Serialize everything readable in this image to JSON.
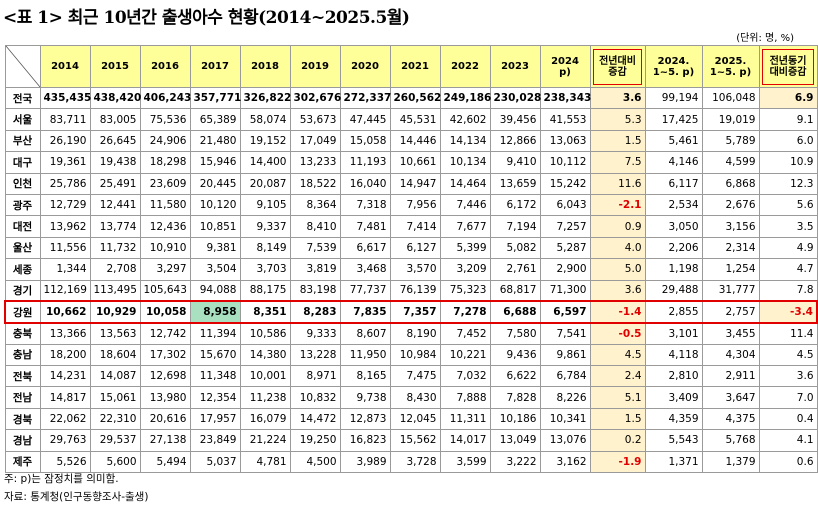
{
  "title": "<표 1> 최근 10년간 출생아수 현황(2014~2025.5월)",
  "unit": "(단위: 명, %)",
  "headers": [
    "2014",
    "2015",
    "2016",
    "2017",
    "2018",
    "2019",
    "2020",
    "2021",
    "2022",
    "2023"
  ],
  "header_2024": [
    "2024",
    "p)"
  ],
  "header_diff": [
    "전년대비",
    "증감"
  ],
  "header_ytd2024": [
    "2024.",
    "1~5. p)"
  ],
  "header_ytd2025": [
    "2025.",
    "1~5. p)"
  ],
  "header_ytd_diff": [
    "전년동기",
    "대비증감"
  ],
  "rows": [
    {
      "region": "전국",
      "vals": [
        "435,435",
        "438,420",
        "406,243",
        "357,771",
        "326,822",
        "302,676",
        "272,337",
        "260,562",
        "249,186",
        "230,028",
        "238,343"
      ],
      "diff": "3.6",
      "ytd24": "99,194",
      "ytd25": "106,048",
      "ytddiff": "6.9"
    },
    {
      "region": "서울",
      "vals": [
        "83,711",
        "83,005",
        "75,536",
        "65,389",
        "58,074",
        "53,673",
        "47,445",
        "45,531",
        "42,602",
        "39,456",
        "41,553"
      ],
      "diff": "5.3",
      "ytd24": "17,425",
      "ytd25": "19,019",
      "ytddiff": "9.1"
    },
    {
      "region": "부산",
      "vals": [
        "26,190",
        "26,645",
        "24,906",
        "21,480",
        "19,152",
        "17,049",
        "15,058",
        "14,446",
        "14,134",
        "12,866",
        "13,063"
      ],
      "diff": "1.5",
      "ytd24": "5,461",
      "ytd25": "5,789",
      "ytddiff": "6.0"
    },
    {
      "region": "대구",
      "vals": [
        "19,361",
        "19,438",
        "18,298",
        "15,946",
        "14,400",
        "13,233",
        "11,193",
        "10,661",
        "10,134",
        "9,410",
        "10,112"
      ],
      "diff": "7.5",
      "ytd24": "4,146",
      "ytd25": "4,599",
      "ytddiff": "10.9"
    },
    {
      "region": "인천",
      "vals": [
        "25,786",
        "25,491",
        "23,609",
        "20,445",
        "20,087",
        "18,522",
        "16,040",
        "14,947",
        "14,464",
        "13,659",
        "15,242"
      ],
      "diff": "11.6",
      "ytd24": "6,117",
      "ytd25": "6,868",
      "ytddiff": "12.3"
    },
    {
      "region": "광주",
      "vals": [
        "12,729",
        "12,441",
        "11,580",
        "10,120",
        "9,105",
        "8,364",
        "7,318",
        "7,956",
        "7,446",
        "6,172",
        "6,043"
      ],
      "diff": "-2.1",
      "ytd24": "2,534",
      "ytd25": "2,676",
      "ytddiff": "5.6"
    },
    {
      "region": "대전",
      "vals": [
        "13,962",
        "13,774",
        "12,436",
        "10,851",
        "9,337",
        "8,410",
        "7,481",
        "7,414",
        "7,677",
        "7,194",
        "7,257"
      ],
      "diff": "0.9",
      "ytd24": "3,050",
      "ytd25": "3,156",
      "ytddiff": "3.5"
    },
    {
      "region": "울산",
      "vals": [
        "11,556",
        "11,732",
        "10,910",
        "9,381",
        "8,149",
        "7,539",
        "6,617",
        "6,127",
        "5,399",
        "5,082",
        "5,287"
      ],
      "diff": "4.0",
      "ytd24": "2,206",
      "ytd25": "2,314",
      "ytddiff": "4.9"
    },
    {
      "region": "세종",
      "vals": [
        "1,344",
        "2,708",
        "3,297",
        "3,504",
        "3,703",
        "3,819",
        "3,468",
        "3,570",
        "3,209",
        "2,761",
        "2,900"
      ],
      "diff": "5.0",
      "ytd24": "1,198",
      "ytd25": "1,254",
      "ytddiff": "4.7"
    },
    {
      "region": "경기",
      "vals": [
        "112,169",
        "113,495",
        "105,643",
        "94,088",
        "88,175",
        "83,198",
        "77,737",
        "76,139",
        "75,323",
        "68,817",
        "71,300"
      ],
      "diff": "3.6",
      "ytd24": "29,488",
      "ytd25": "31,777",
      "ytddiff": "7.8"
    },
    {
      "region": "강원",
      "vals": [
        "10,662",
        "10,929",
        "10,058",
        "8,958",
        "8,351",
        "8,283",
        "7,835",
        "7,357",
        "7,278",
        "6,688",
        "6,597"
      ],
      "diff": "-1.4",
      "ytd24": "2,855",
      "ytd25": "2,757",
      "ytddiff": "-3.4"
    },
    {
      "region": "충북",
      "vals": [
        "13,366",
        "13,563",
        "12,742",
        "11,394",
        "10,586",
        "9,333",
        "8,607",
        "8,190",
        "7,452",
        "7,580",
        "7,541"
      ],
      "diff": "-0.5",
      "ytd24": "3,101",
      "ytd25": "3,455",
      "ytddiff": "11.4"
    },
    {
      "region": "충남",
      "vals": [
        "18,200",
        "18,604",
        "17,302",
        "15,670",
        "14,380",
        "13,228",
        "11,950",
        "10,984",
        "10,221",
        "9,436",
        "9,861"
      ],
      "diff": "4.5",
      "ytd24": "4,118",
      "ytd25": "4,304",
      "ytddiff": "4.5"
    },
    {
      "region": "전북",
      "vals": [
        "14,231",
        "14,087",
        "12,698",
        "11,348",
        "10,001",
        "8,971",
        "8,165",
        "7,475",
        "7,032",
        "6,622",
        "6,784"
      ],
      "diff": "2.4",
      "ytd24": "2,810",
      "ytd25": "2,911",
      "ytddiff": "3.6"
    },
    {
      "region": "전남",
      "vals": [
        "14,817",
        "15,061",
        "13,980",
        "12,354",
        "11,238",
        "10,832",
        "9,738",
        "8,430",
        "7,888",
        "7,828",
        "8,226"
      ],
      "diff": "5.1",
      "ytd24": "3,409",
      "ytd25": "3,647",
      "ytddiff": "7.0"
    },
    {
      "region": "경북",
      "vals": [
        "22,062",
        "22,310",
        "20,616",
        "17,957",
        "16,079",
        "14,472",
        "12,873",
        "12,045",
        "11,311",
        "10,186",
        "10,341"
      ],
      "diff": "1.5",
      "ytd24": "4,359",
      "ytd25": "4,375",
      "ytddiff": "0.4"
    },
    {
      "region": "경남",
      "vals": [
        "29,763",
        "29,537",
        "27,138",
        "23,849",
        "21,224",
        "19,250",
        "16,823",
        "15,562",
        "14,017",
        "13,049",
        "13,076"
      ],
      "diff": "0.2",
      "ytd24": "5,543",
      "ytd25": "5,768",
      "ytddiff": "4.1"
    },
    {
      "region": "제주",
      "vals": [
        "5,526",
        "5,600",
        "5,494",
        "5,037",
        "4,781",
        "4,500",
        "3,989",
        "3,728",
        "3,599",
        "3,222",
        "3,162"
      ],
      "diff": "-1.9",
      "ytd24": "1,371",
      "ytd25": "1,379",
      "ytddiff": "0.6"
    }
  ],
  "highlight_region": "강원",
  "highlight_green_cell": {
    "region": "강원",
    "year": "2017"
  },
  "notes": [
    "주: p)는 잠정치를 의미함.",
    "자료: 통계청(인구동향조사-출생)"
  ]
}
